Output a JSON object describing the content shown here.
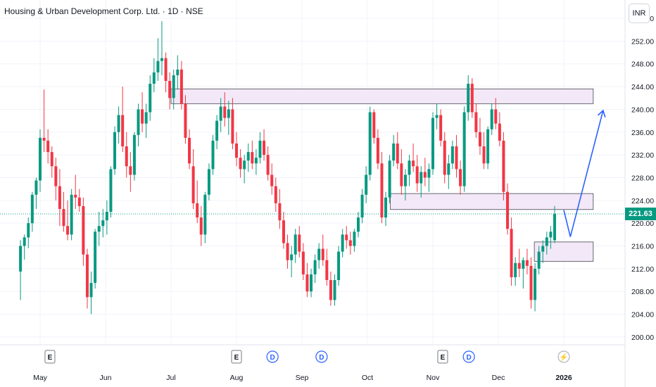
{
  "header": {
    "title": "Housing & Urban Development Corp. Ltd. · 1D · NSE",
    "currency": "INR"
  },
  "last_price": "221.63",
  "colors": {
    "up": "#089981",
    "down": "#f23645",
    "projection": "#2962ff",
    "zone_fill": "#f3e8f7",
    "zone_stroke": "#434651",
    "grid": "#f0f3fa",
    "price_line": "#089981"
  },
  "chart_data": {
    "type": "candlestick",
    "title": "Housing & Urban Development Corp. Ltd. · 1D · NSE",
    "y_axis": {
      "ticks": [
        "256.00",
        "252.00",
        "248.00",
        "244.00",
        "240.00",
        "236.00",
        "232.00",
        "228.00",
        "224.00",
        "220.00",
        "216.00",
        "212.00",
        "208.00",
        "204.00",
        "200.00"
      ],
      "ylim": [
        199.0,
        256.5
      ]
    },
    "x_axis": {
      "ticks": [
        "May",
        "Jun",
        "Jul",
        "Aug",
        "Sep",
        "Oct",
        "Nov",
        "Dec",
        "2026"
      ]
    },
    "events": [
      {
        "label": "E",
        "kind": "earnings",
        "month_position": 0.15
      },
      {
        "label": "E",
        "kind": "earnings",
        "month_position": 3.0
      },
      {
        "label": "D",
        "kind": "dividend",
        "month_position": 3.55
      },
      {
        "label": "D",
        "kind": "dividend",
        "month_position": 4.3
      },
      {
        "label": "E",
        "kind": "earnings",
        "month_position": 6.15
      },
      {
        "label": "D",
        "kind": "dividend",
        "month_position": 6.55
      },
      {
        "label": "⚡",
        "kind": "split",
        "month_position": 8.0
      }
    ],
    "zones": [
      {
        "low": 241.0,
        "high": 243.6,
        "from_month": 2.0,
        "to_month": 8.45
      },
      {
        "low": 222.4,
        "high": 225.2,
        "from_month": 5.35,
        "to_month": 8.45
      },
      {
        "low": 213.3,
        "high": 216.7,
        "from_month": 7.55,
        "to_month": 8.45
      }
    ],
    "projection": [
      {
        "month": 8.0,
        "price": 222.3
      },
      {
        "month": 8.1,
        "price": 217.6
      },
      {
        "month": 8.6,
        "price": 239.8
      }
    ],
    "candles": [
      [
        -0.3,
        211.5,
        217.0,
        206.5,
        216.0
      ],
      [
        -0.24,
        216.0,
        218.0,
        213.6,
        217.5
      ],
      [
        -0.18,
        217.5,
        221.0,
        215.6,
        220.0
      ],
      [
        -0.12,
        220.0,
        225.5,
        218.5,
        225.0
      ],
      [
        -0.06,
        225.0,
        228.0,
        222.5,
        227.5
      ],
      [
        0.0,
        227.5,
        236.5,
        225.5,
        235.0
      ],
      [
        0.06,
        235.0,
        243.5,
        232.5,
        234.5
      ],
      [
        0.12,
        234.5,
        236.5,
        230.5,
        232.5
      ],
      [
        0.18,
        232.5,
        233.5,
        228.0,
        230.0
      ],
      [
        0.24,
        230.0,
        231.5,
        224.0,
        226.5
      ],
      [
        0.3,
        226.5,
        229.5,
        219.5,
        222.5
      ],
      [
        0.36,
        222.5,
        225.5,
        218.5,
        219.5
      ],
      [
        0.42,
        219.5,
        224.0,
        217.0,
        218.0
      ],
      [
        0.48,
        218.0,
        226.0,
        217.0,
        225.0
      ],
      [
        0.54,
        225.0,
        228.5,
        222.5,
        224.5
      ],
      [
        0.6,
        224.5,
        226.0,
        222.0,
        223.0
      ],
      [
        0.66,
        223.0,
        224.5,
        212.5,
        214.5
      ],
      [
        0.72,
        214.5,
        215.5,
        205.0,
        207.0
      ],
      [
        0.78,
        207.0,
        211.5,
        204.0,
        209.5
      ],
      [
        0.84,
        209.5,
        219.0,
        208.5,
        218.5
      ],
      [
        0.9,
        218.5,
        222.0,
        216.0,
        219.5
      ],
      [
        0.96,
        219.5,
        222.5,
        217.5,
        220.5
      ],
      [
        1.02,
        220.5,
        224.0,
        218.0,
        222.0
      ],
      [
        1.08,
        222.0,
        230.0,
        221.0,
        229.5
      ],
      [
        1.14,
        229.5,
        237.0,
        228.5,
        236.0
      ],
      [
        1.2,
        236.0,
        240.5,
        234.0,
        239.0
      ],
      [
        1.26,
        239.0,
        244.0,
        232.5,
        233.5
      ],
      [
        1.32,
        233.5,
        236.0,
        228.0,
        230.0
      ],
      [
        1.38,
        230.0,
        232.5,
        225.5,
        228.5
      ],
      [
        1.44,
        228.5,
        236.0,
        227.5,
        235.5
      ],
      [
        1.5,
        235.5,
        241.0,
        233.5,
        240.0
      ],
      [
        1.56,
        240.0,
        243.0,
        236.0,
        237.5
      ],
      [
        1.62,
        237.5,
        241.0,
        235.0,
        239.5
      ],
      [
        1.68,
        239.5,
        246.0,
        238.0,
        244.5
      ],
      [
        1.74,
        244.5,
        249.0,
        243.0,
        246.5
      ],
      [
        1.8,
        246.5,
        252.5,
        245.0,
        248.5
      ],
      [
        1.86,
        248.5,
        255.5,
        246.0,
        249.0
      ],
      [
        1.92,
        249.0,
        250.0,
        243.0,
        245.0
      ],
      [
        1.98,
        245.0,
        246.5,
        240.0,
        242.0
      ],
      [
        2.04,
        242.0,
        247.0,
        240.0,
        246.0
      ],
      [
        2.1,
        246.0,
        249.5,
        243.5,
        247.0
      ],
      [
        2.16,
        247.0,
        248.5,
        240.0,
        241.0
      ],
      [
        2.22,
        241.0,
        242.5,
        234.0,
        235.0
      ],
      [
        2.28,
        235.0,
        236.5,
        229.5,
        230.5
      ],
      [
        2.34,
        230.0,
        233.0,
        222.5,
        223.5
      ],
      [
        2.4,
        223.5,
        227.5,
        220.0,
        221.0
      ],
      [
        2.46,
        221.0,
        223.0,
        216.0,
        218.0
      ],
      [
        2.52,
        218.0,
        225.5,
        216.5,
        225.0
      ],
      [
        2.58,
        225.0,
        230.5,
        224.0,
        229.5
      ],
      [
        2.64,
        229.5,
        235.5,
        228.5,
        234.5
      ],
      [
        2.7,
        234.5,
        239.0,
        233.0,
        238.0
      ],
      [
        2.76,
        238.0,
        242.0,
        236.0,
        240.5
      ],
      [
        2.82,
        240.5,
        243.0,
        237.0,
        238.5
      ],
      [
        2.88,
        238.5,
        241.5,
        235.5,
        240.0
      ],
      [
        2.94,
        240.0,
        242.0,
        233.0,
        234.0
      ],
      [
        3.0,
        234.0,
        236.0,
        230.0,
        231.5
      ],
      [
        3.06,
        231.5,
        233.0,
        228.0,
        229.5
      ],
      [
        3.12,
        229.5,
        232.0,
        227.0,
        231.0
      ],
      [
        3.18,
        231.0,
        234.0,
        229.0,
        232.5
      ],
      [
        3.24,
        232.5,
        234.5,
        229.5,
        230.5
      ],
      [
        3.3,
        230.5,
        233.0,
        228.5,
        231.5
      ],
      [
        3.36,
        231.5,
        236.0,
        230.5,
        234.5
      ],
      [
        3.42,
        234.5,
        236.5,
        231.0,
        232.0
      ],
      [
        3.48,
        232.0,
        233.5,
        227.5,
        228.5
      ],
      [
        3.54,
        228.5,
        230.5,
        225.0,
        226.5
      ],
      [
        3.6,
        226.5,
        228.0,
        222.0,
        223.5
      ],
      [
        3.66,
        223.5,
        226.0,
        219.0,
        220.5
      ],
      [
        3.72,
        220.5,
        222.0,
        215.5,
        216.5
      ],
      [
        3.78,
        216.5,
        218.0,
        212.0,
        213.5
      ],
      [
        3.84,
        213.5,
        216.0,
        210.5,
        214.5
      ],
      [
        3.9,
        214.5,
        219.0,
        213.0,
        218.0
      ],
      [
        3.96,
        218.0,
        219.5,
        214.0,
        215.0
      ],
      [
        4.02,
        215.0,
        216.5,
        210.0,
        211.0
      ],
      [
        4.08,
        211.0,
        213.0,
        207.0,
        208.0
      ],
      [
        4.14,
        208.0,
        212.0,
        207.0,
        211.0
      ],
      [
        4.2,
        211.0,
        214.5,
        209.5,
        213.5
      ],
      [
        4.26,
        213.5,
        216.5,
        212.0,
        215.5
      ],
      [
        4.32,
        215.5,
        218.0,
        212.5,
        213.5
      ],
      [
        4.38,
        213.5,
        215.5,
        209.0,
        210.0
      ],
      [
        4.44,
        210.0,
        211.5,
        205.5,
        206.5
      ],
      [
        4.5,
        206.5,
        211.0,
        205.5,
        210.0
      ],
      [
        4.56,
        210.0,
        216.0,
        209.0,
        215.0
      ],
      [
        4.62,
        215.0,
        219.0,
        214.0,
        218.0
      ],
      [
        4.68,
        218.0,
        219.5,
        215.5,
        217.0
      ],
      [
        4.74,
        217.0,
        218.5,
        214.5,
        216.0
      ],
      [
        4.8,
        216.0,
        219.0,
        215.0,
        218.5
      ],
      [
        4.86,
        218.5,
        222.0,
        217.5,
        221.0
      ],
      [
        4.92,
        221.0,
        226.0,
        220.0,
        225.0
      ],
      [
        4.98,
        225.0,
        230.0,
        223.5,
        228.5
      ],
      [
        5.04,
        228.5,
        240.5,
        227.5,
        239.5
      ],
      [
        5.1,
        239.5,
        240.0,
        234.0,
        235.0
      ],
      [
        5.16,
        235.0,
        236.5,
        229.5,
        230.5
      ],
      [
        5.22,
        230.5,
        232.5,
        220.0,
        221.0
      ],
      [
        5.28,
        221.0,
        225.5,
        219.5,
        224.5
      ],
      [
        5.34,
        224.5,
        232.0,
        223.5,
        231.0
      ],
      [
        5.4,
        231.0,
        235.5,
        230.0,
        234.0
      ],
      [
        5.46,
        234.0,
        236.0,
        229.5,
        230.5
      ],
      [
        5.52,
        230.5,
        233.0,
        225.0,
        226.5
      ],
      [
        5.58,
        226.5,
        229.5,
        224.0,
        228.5
      ],
      [
        5.64,
        228.5,
        232.0,
        226.5,
        231.0
      ],
      [
        5.7,
        231.0,
        234.0,
        229.0,
        230.0
      ],
      [
        5.76,
        230.0,
        232.0,
        225.5,
        227.0
      ],
      [
        5.82,
        227.0,
        230.0,
        224.5,
        229.0
      ],
      [
        5.88,
        229.0,
        231.5,
        226.5,
        228.0
      ],
      [
        5.94,
        228.0,
        230.5,
        225.5,
        229.5
      ],
      [
        6.0,
        229.5,
        239.5,
        228.5,
        238.5
      ],
      [
        6.06,
        238.5,
        241.0,
        236.5,
        239.0
      ],
      [
        6.12,
        239.0,
        240.0,
        233.5,
        234.5
      ],
      [
        6.18,
        234.5,
        236.0,
        227.0,
        228.5
      ],
      [
        6.24,
        228.5,
        232.0,
        226.0,
        230.5
      ],
      [
        6.3,
        230.5,
        234.5,
        229.5,
        233.5
      ],
      [
        6.36,
        233.5,
        235.5,
        228.0,
        229.5
      ],
      [
        6.42,
        229.5,
        231.0,
        225.0,
        226.5
      ],
      [
        6.48,
        226.5,
        240.5,
        225.5,
        239.5
      ],
      [
        6.54,
        239.5,
        246.0,
        238.0,
        244.5
      ],
      [
        6.6,
        244.5,
        245.5,
        238.5,
        239.5
      ],
      [
        6.66,
        239.5,
        241.0,
        235.0,
        236.0
      ],
      [
        6.72,
        236.0,
        238.5,
        232.0,
        233.5
      ],
      [
        6.78,
        233.5,
        236.0,
        229.5,
        230.5
      ],
      [
        6.84,
        230.5,
        237.0,
        229.5,
        236.5
      ],
      [
        6.9,
        236.5,
        241.0,
        235.5,
        240.0
      ],
      [
        6.96,
        240.0,
        242.0,
        236.5,
        237.5
      ],
      [
        7.02,
        237.5,
        239.5,
        233.5,
        234.5
      ],
      [
        7.08,
        234.5,
        236.0,
        224.0,
        225.5
      ],
      [
        7.14,
        225.5,
        227.0,
        218.0,
        219.0
      ],
      [
        7.2,
        219.0,
        221.0,
        209.0,
        210.5
      ],
      [
        7.26,
        210.5,
        214.0,
        209.0,
        213.0
      ],
      [
        7.32,
        213.0,
        215.5,
        210.5,
        212.0
      ],
      [
        7.38,
        212.0,
        214.0,
        208.5,
        213.5
      ],
      [
        7.44,
        213.5,
        215.5,
        211.0,
        212.5
      ],
      [
        7.5,
        212.5,
        214.0,
        205.0,
        206.5
      ],
      [
        7.56,
        206.5,
        213.0,
        204.5,
        212.0
      ],
      [
        7.62,
        212.0,
        216.0,
        211.0,
        215.0
      ],
      [
        7.68,
        215.0,
        217.0,
        213.0,
        216.0
      ],
      [
        7.74,
        216.0,
        218.5,
        214.5,
        217.5
      ],
      [
        7.8,
        217.5,
        219.5,
        215.5,
        218.5
      ],
      [
        7.86,
        217.0,
        223.0,
        216.5,
        221.63
      ]
    ]
  }
}
